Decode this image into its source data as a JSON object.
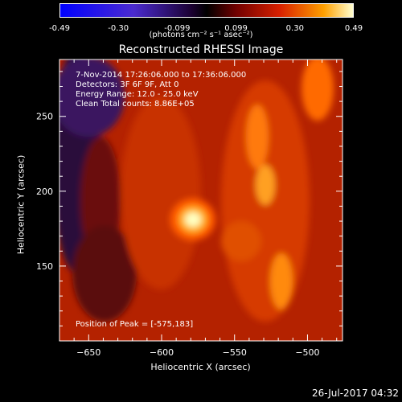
{
  "colorbar": {
    "ticks": [
      "-0.49",
      "-0.30",
      "-0.099",
      "0.099",
      "0.30",
      "0.49"
    ],
    "units": "(photons cm⁻² s⁻¹ asec⁻²)"
  },
  "annotations": {
    "time": "7-Nov-2014 17:26:06.000 to 17:36:06.000",
    "detectors": "Detectors: 3F 6F 9F, Att 0",
    "energy": "Energy Range: 12.0 - 25.0 keV",
    "clean": "Clean     Total counts: 8.86E+05",
    "peak": "Position of Peak = [-575,183]"
  },
  "footer_date": "26-Jul-2017 04:32",
  "chart_data": {
    "type": "heatmap",
    "title": "Reconstructed RHESSI Image",
    "xlabel": "Heliocentric X (arcsec)",
    "ylabel": "Heliocentric Y (arcsec)",
    "xlim": [
      -670,
      -476
    ],
    "ylim": [
      100,
      288
    ],
    "x_ticks": [
      -650,
      -600,
      -550,
      -500
    ],
    "y_ticks": [
      150,
      200,
      250
    ],
    "color_range": [
      -0.49,
      0.49
    ],
    "colormap": "RHESSI red-temperature with blue/violet negatives",
    "peak": {
      "x": -575,
      "y": 183
    }
  }
}
